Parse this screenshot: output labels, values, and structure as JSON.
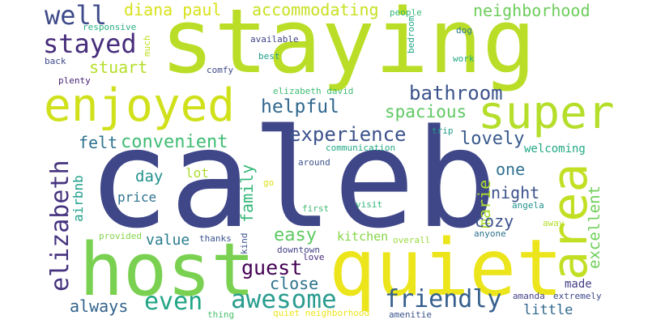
{
  "words": [
    {
      "text": "caleb",
      "color": "#3f4788"
    },
    {
      "text": "staying",
      "color": "#bade28"
    },
    {
      "text": "quiet",
      "color": "#ece51b"
    },
    {
      "text": "host",
      "color": "#7ad151"
    },
    {
      "text": "enjoyed",
      "color": "#d0e11c"
    },
    {
      "text": "super",
      "color": "#b5de2b"
    },
    {
      "text": "area",
      "color": "#c2df23"
    },
    {
      "text": "awesome",
      "color": "#2a9d8f"
    },
    {
      "text": "even",
      "color": "#21a585"
    },
    {
      "text": "friendly",
      "color": "#355f8d"
    },
    {
      "text": "well",
      "color": "#3e4a89"
    },
    {
      "text": "stayed",
      "color": "#472d7b"
    },
    {
      "text": "elizabeth",
      "color": "#46337e"
    },
    {
      "text": "experience",
      "color": "#3b528b"
    },
    {
      "text": "bathroom",
      "color": "#3b528b"
    },
    {
      "text": "helpful",
      "color": "#31688e"
    },
    {
      "text": "spacious",
      "color": "#5ec962"
    },
    {
      "text": "convenient",
      "color": "#3fbc73"
    },
    {
      "text": "lovely",
      "color": "#38598c"
    },
    {
      "text": "guest",
      "color": "#440154"
    },
    {
      "text": "easy",
      "color": "#5ec962"
    },
    {
      "text": "close",
      "color": "#2c728e"
    },
    {
      "text": "always",
      "color": "#33638d"
    },
    {
      "text": "diana paul",
      "color": "#d8e219"
    },
    {
      "text": "accommodating",
      "color": "#c8e020"
    },
    {
      "text": "neighborhood",
      "color": "#6ccd5a"
    },
    {
      "text": "stuart",
      "color": "#b5de2b"
    },
    {
      "text": "felt",
      "color": "#2c728e"
    },
    {
      "text": "family",
      "color": "#35b779"
    },
    {
      "text": "marie",
      "color": "#addc30"
    },
    {
      "text": "one",
      "color": "#2d708e"
    },
    {
      "text": "night",
      "color": "#3b528b"
    },
    {
      "text": "cozy",
      "color": "#3b528b"
    },
    {
      "text": "excellent",
      "color": "#6ece58"
    },
    {
      "text": "day",
      "color": "#21918c"
    },
    {
      "text": "value",
      "color": "#287c8e"
    },
    {
      "text": "kitchen",
      "color": "#86d549"
    },
    {
      "text": "little",
      "color": "#31688e"
    },
    {
      "text": "made",
      "color": "#433e85"
    },
    {
      "text": "welcoming",
      "color": "#22a884"
    },
    {
      "text": "airbnb",
      "color": "#1fa088"
    },
    {
      "text": "lot",
      "color": "#addc30"
    },
    {
      "text": "price",
      "color": "#2c728e"
    },
    {
      "text": "available",
      "color": "#414487"
    },
    {
      "text": "people",
      "color": "#35b779"
    },
    {
      "text": "dog",
      "color": "#2a788e"
    },
    {
      "text": "responsive",
      "color": "#29af7f"
    },
    {
      "text": "much",
      "color": "#c2df23"
    },
    {
      "text": "bedroom",
      "color": "#22a884"
    },
    {
      "text": "best",
      "color": "#1f9e89"
    },
    {
      "text": "work",
      "color": "#22a884"
    },
    {
      "text": "back",
      "color": "#3e4989"
    },
    {
      "text": "comfy",
      "color": "#3e4989"
    },
    {
      "text": "plenty",
      "color": "#482475"
    },
    {
      "text": "elizabeth david",
      "color": "#3fbc73"
    },
    {
      "text": "trip",
      "color": "#1f9e89"
    },
    {
      "text": "communication",
      "color": "#22a884"
    },
    {
      "text": "around",
      "color": "#3b528b"
    },
    {
      "text": "go",
      "color": "#dfe318"
    },
    {
      "text": "first",
      "color": "#3fbc73"
    },
    {
      "text": "visit",
      "color": "#31b57b"
    },
    {
      "text": "angela",
      "color": "#21918c"
    },
    {
      "text": "away",
      "color": "#b5de2b"
    },
    {
      "text": "kind",
      "color": "#3b528b"
    },
    {
      "text": "thanks",
      "color": "#3b528b"
    },
    {
      "text": "provided",
      "color": "#84d44b"
    },
    {
      "text": "downtown",
      "color": "#424186"
    },
    {
      "text": "love",
      "color": "#472d7b"
    },
    {
      "text": "anyone",
      "color": "#2c728e"
    },
    {
      "text": "overall",
      "color": "#9bd93c"
    },
    {
      "text": "amanda",
      "color": "#433e85"
    },
    {
      "text": "extremely",
      "color": "#3e4989"
    },
    {
      "text": "amenitie",
      "color": "#3b528b"
    },
    {
      "text": "thing",
      "color": "#4ac16d"
    },
    {
      "text": "quiet neighborhood",
      "color": "#ece51b"
    }
  ]
}
